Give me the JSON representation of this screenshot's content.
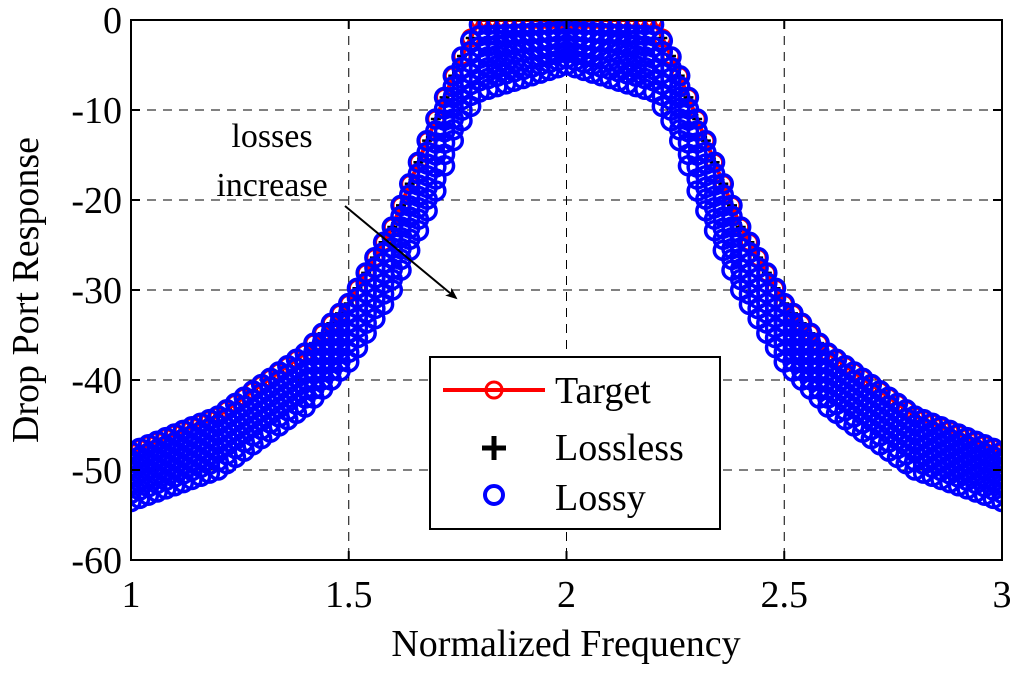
{
  "chart_data": {
    "type": "scatter",
    "title": "",
    "xlabel": "Normalized Frequency",
    "ylabel": "Drop Port Response",
    "xlim": [
      1,
      3
    ],
    "ylim": [
      -60,
      0
    ],
    "xticks": [
      1,
      1.5,
      2,
      2.5,
      3
    ],
    "yticks": [
      0,
      -10,
      -20,
      -30,
      -40,
      -50,
      -60
    ],
    "xtick_labels": [
      "1",
      "1.5",
      "2",
      "2.5",
      "3"
    ],
    "ytick_labels": [
      "0",
      "-10",
      "-20",
      "-30",
      "-40",
      "-50",
      "-60"
    ],
    "grid": true,
    "legend_position": "bottom-center",
    "colors": {
      "target": "#ff0000",
      "lossless": "#000000",
      "lossy": "#0000ff"
    },
    "series": [
      {
        "name": "Target",
        "style": "red line with circle markers",
        "x": [
          1.0,
          1.2,
          1.4,
          1.5,
          1.6,
          1.7,
          1.75,
          1.8,
          2.0,
          2.2,
          2.25,
          2.3,
          2.4,
          2.5,
          2.6,
          2.8,
          3.0
        ],
        "y": [
          -48,
          -44,
          -37,
          -31.5,
          -23,
          -11,
          -5,
          0,
          0,
          0,
          -5,
          -11,
          -23,
          -31.5,
          -37,
          -44,
          -48
        ]
      },
      {
        "name": "Lossless",
        "style": "black plus markers",
        "x": [
          1.0,
          1.2,
          1.4,
          1.5,
          1.6,
          1.7,
          1.75,
          1.8,
          2.0,
          2.2,
          2.25,
          2.3,
          2.4,
          2.5,
          2.6,
          2.8,
          3.0
        ],
        "y": [
          -48,
          -44,
          -37,
          -31.5,
          -23,
          -11,
          -5,
          0,
          0,
          0,
          -5,
          -11,
          -23,
          -31.5,
          -37,
          -44,
          -48
        ]
      },
      {
        "name": "Lossy",
        "style": "blue circle markers, family of curves for increasing losses",
        "x": [
          1.0,
          1.2,
          1.4,
          1.5,
          1.6,
          1.7,
          1.75,
          1.8,
          2.0,
          2.2,
          2.25,
          2.3,
          2.4,
          2.5,
          2.6,
          2.8,
          3.0
        ],
        "y_upper": [
          -48,
          -44,
          -37,
          -31.5,
          -23,
          -11,
          -5,
          -0.5,
          -0.5,
          -0.5,
          -5,
          -11,
          -23,
          -31.5,
          -37,
          -44,
          -48
        ],
        "y_lower": [
          -53.5,
          -50,
          -43,
          -38,
          -30,
          -19,
          -12,
          -8,
          -5,
          -8,
          -12,
          -19,
          -30,
          -38,
          -43,
          -50,
          -53.5
        ]
      }
    ],
    "annotations": [
      {
        "text_line1": "losses",
        "text_line2": "increase",
        "arrow": "points down-right toward lower lossy curves"
      }
    ]
  }
}
